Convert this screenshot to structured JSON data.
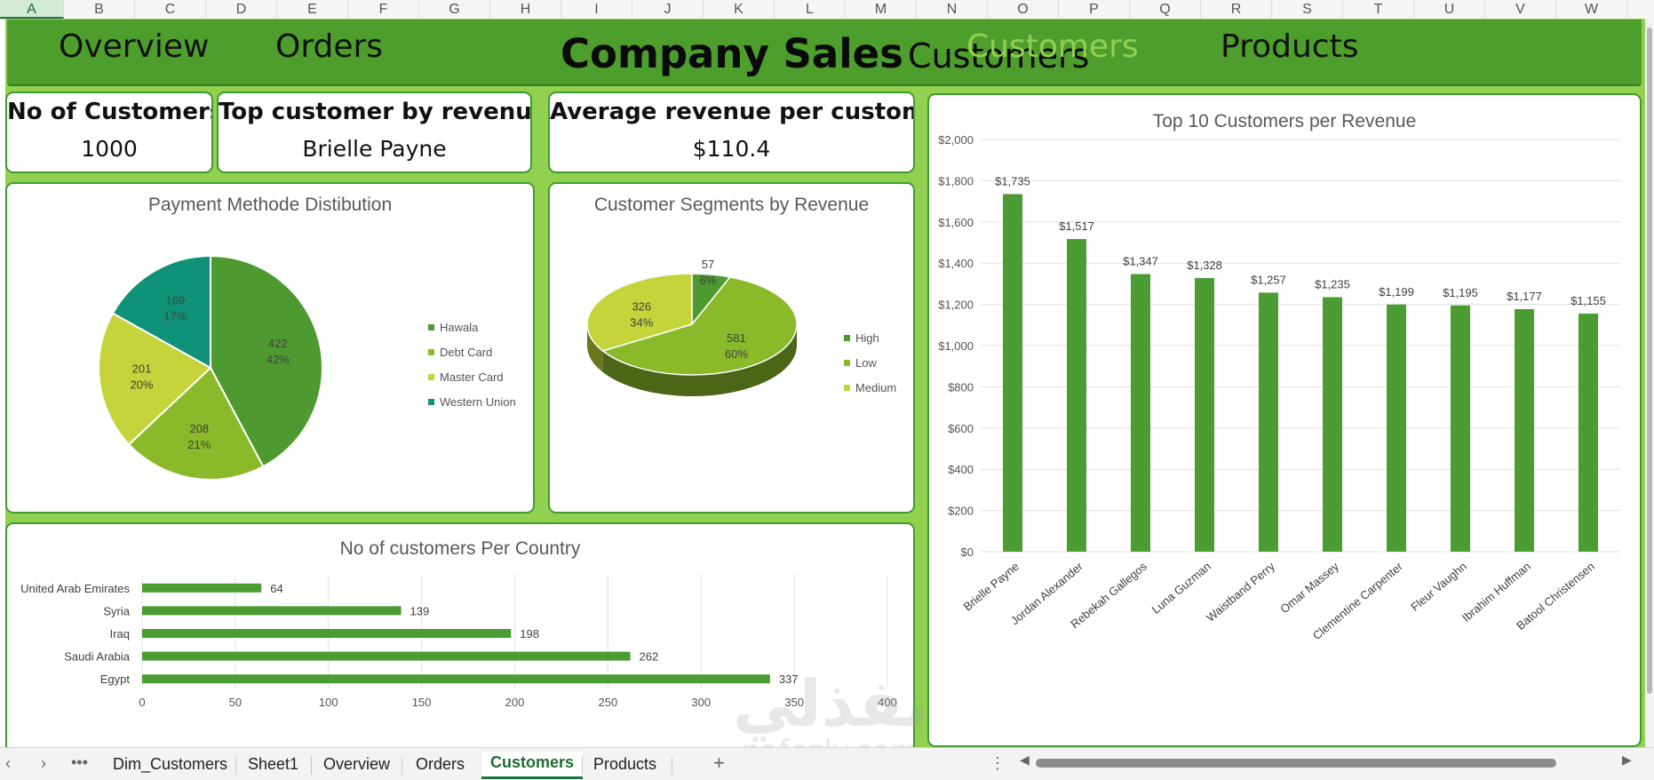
{
  "columns": [
    "A",
    "B",
    "C",
    "D",
    "E",
    "F",
    "G",
    "H",
    "I",
    "J",
    "K",
    "L",
    "M",
    "N",
    "O",
    "P",
    "Q",
    "R",
    "S",
    "T",
    "U",
    "V",
    "W"
  ],
  "selected_column": "A",
  "nav": {
    "overview": "Overview",
    "orders": "Orders",
    "title_bold": "Company Sales",
    "title_sub": "Customers",
    "customers": "Customers",
    "products": "Products"
  },
  "kpis": {
    "customers_label": "No of Customers",
    "customers_value": "1000",
    "top_label": "Top customer by revenue",
    "top_value": "Brielle Payne",
    "avg_label": "Average revenue per customers",
    "avg_value": "$110.4"
  },
  "colors": {
    "accent_green": "#4e9e2d",
    "background_green": "#92d050",
    "bar_green": "#4a9c33"
  },
  "charts": {
    "payment": {
      "title": "Payment Methode Distibution",
      "chart_data": {
        "type": "pie",
        "categories": [
          "Hawala",
          "Debt Card",
          "Master Card",
          "Western Union"
        ],
        "values": [
          422,
          208,
          201,
          169
        ],
        "percent_labels": [
          "42%",
          "21%",
          "20%",
          "17%"
        ],
        "colors": [
          "#4e9a30",
          "#8aba2a",
          "#c4d43a",
          "#0f9277"
        ],
        "legend": "right"
      }
    },
    "segments": {
      "title": "Customer Segments by Revenue",
      "chart_data": {
        "type": "pie",
        "categories": [
          "High",
          "Low",
          "Medium"
        ],
        "values": [
          57,
          581,
          326
        ],
        "percent_labels": [
          "6%",
          "60%",
          "34%"
        ],
        "colors": [
          "#4e9a30",
          "#8aba2a",
          "#c4d43a"
        ],
        "legend": "right"
      }
    },
    "country": {
      "title": "No of customers Per Country",
      "chart_data": {
        "type": "bar",
        "orientation": "horizontal",
        "categories": [
          "United Arab Emirates",
          "Syria",
          "Iraq",
          "Saudi Arabia",
          "Egypt"
        ],
        "values": [
          64,
          139,
          198,
          262,
          337
        ],
        "xlim": [
          0,
          400
        ],
        "x_ticks": [
          "0",
          "50",
          "100",
          "150",
          "200",
          "250",
          "300",
          "350",
          "400"
        ],
        "grid": true
      }
    },
    "top10": {
      "title": "Top 10 Customers per Revenue",
      "chart_data": {
        "type": "bar",
        "categories": [
          "Brielle Payne",
          "Jordan Alexander",
          "Rebekah Gallegos",
          "Luna Guzman",
          "Waistband Perry",
          "Omar Massey",
          "Clementine Carpenter",
          "Fleur Vaughn",
          "Ibrahim Huffman",
          "Batool Christensen"
        ],
        "values": [
          1735,
          1517,
          1347,
          1328,
          1257,
          1235,
          1199,
          1195,
          1177,
          1155
        ],
        "value_labels": [
          "$1,735",
          "$1,517",
          "$1,347",
          "$1,328",
          "$1,257",
          "$1,235",
          "$1,199",
          "$1,195",
          "$1,177",
          "$1,155"
        ],
        "ylim": [
          0,
          2000
        ],
        "y_ticks": [
          "$0",
          "$200",
          "$400",
          "$600",
          "$800",
          "$1,000",
          "$1,200",
          "$1,400",
          "$1,600",
          "$1,800",
          "$2,000"
        ],
        "grid": true
      }
    }
  },
  "sheet_tabs": {
    "tabs": [
      "Dim_Customers",
      "Sheet1",
      "Overview",
      "Orders",
      "Customers",
      "Products"
    ],
    "active": "Customers",
    "add_icon": "+",
    "more_icon": "•••",
    "menu_icon": "⋮"
  },
  "watermark": {
    "arabic": "نفذلي",
    "latin": "nafezly.com"
  }
}
